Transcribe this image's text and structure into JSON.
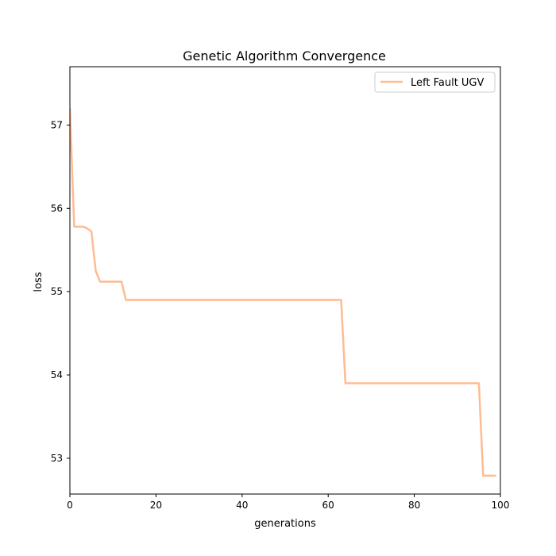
{
  "chart_data": {
    "type": "line",
    "title": "Genetic Algorithm Convergence",
    "xlabel": "generations",
    "ylabel": "loss",
    "xlim": [
      0,
      100
    ],
    "ylim": [
      52.57,
      57.7
    ],
    "xticks": [
      0,
      20,
      40,
      60,
      80,
      100
    ],
    "yticks": [
      53,
      54,
      55,
      56,
      57
    ],
    "grid": false,
    "legend_position": "top-right",
    "series": [
      {
        "name": "Left Fault UGV",
        "color": "#ffbb92",
        "x": [
          0,
          1,
          2,
          3,
          4,
          5,
          6,
          7,
          8,
          9,
          10,
          11,
          12,
          13,
          14,
          20,
          30,
          40,
          50,
          60,
          63,
          64,
          65,
          70,
          80,
          90,
          95,
          96,
          97,
          98,
          99
        ],
        "y": [
          57.2,
          55.78,
          55.78,
          55.78,
          55.76,
          55.72,
          55.25,
          55.12,
          55.12,
          55.12,
          55.12,
          55.12,
          55.12,
          54.9,
          54.9,
          54.9,
          54.9,
          54.9,
          54.9,
          54.9,
          54.9,
          53.9,
          53.9,
          53.9,
          53.9,
          53.9,
          53.9,
          52.79,
          52.79,
          52.79,
          52.79
        ]
      }
    ]
  }
}
